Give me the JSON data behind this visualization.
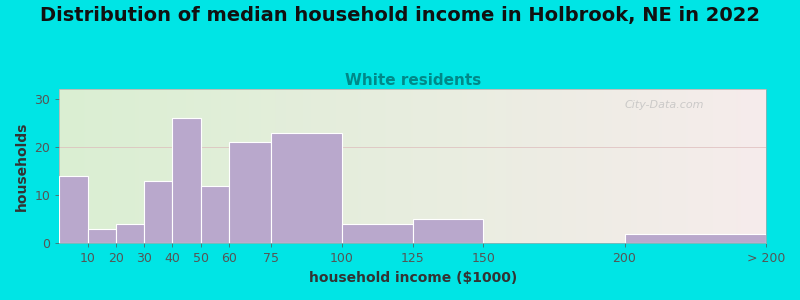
{
  "title": "Distribution of median household income in Holbrook, NE in 2022",
  "subtitle": "White residents",
  "xlabel": "household income ($1000)",
  "ylabel": "households",
  "bar_color": "#b9a8cc",
  "bar_edgecolor": "#ffffff",
  "background_outer": "#00e5e5",
  "background_plot_left": "#daefd2",
  "background_plot_right": "#f5e8e8",
  "ylim": [
    0,
    32
  ],
  "yticks": [
    0,
    10,
    20,
    30
  ],
  "bin_edges": [
    0,
    10,
    20,
    30,
    40,
    50,
    60,
    75,
    100,
    125,
    150,
    200,
    250
  ],
  "bin_labels": [
    "10",
    "20",
    "30",
    "40",
    "50",
    "60",
    "75",
    "100",
    "125",
    "150",
    "200",
    "> 200"
  ],
  "values": [
    14,
    3,
    4,
    13,
    26,
    12,
    21,
    23,
    4,
    5,
    0,
    2
  ],
  "title_fontsize": 14,
  "subtitle_fontsize": 11,
  "subtitle_color": "#008888",
  "axis_label_fontsize": 10,
  "tick_fontsize": 9,
  "watermark": "City-Data.com",
  "xtick_positions": [
    10,
    20,
    30,
    40,
    50,
    60,
    75,
    100,
    125,
    150,
    200,
    250
  ],
  "xtick_labels": [
    "10",
    "20",
    "30",
    "40",
    "50",
    "60",
    "75",
    "100",
    "125",
    "150",
    "200",
    "> 200"
  ]
}
